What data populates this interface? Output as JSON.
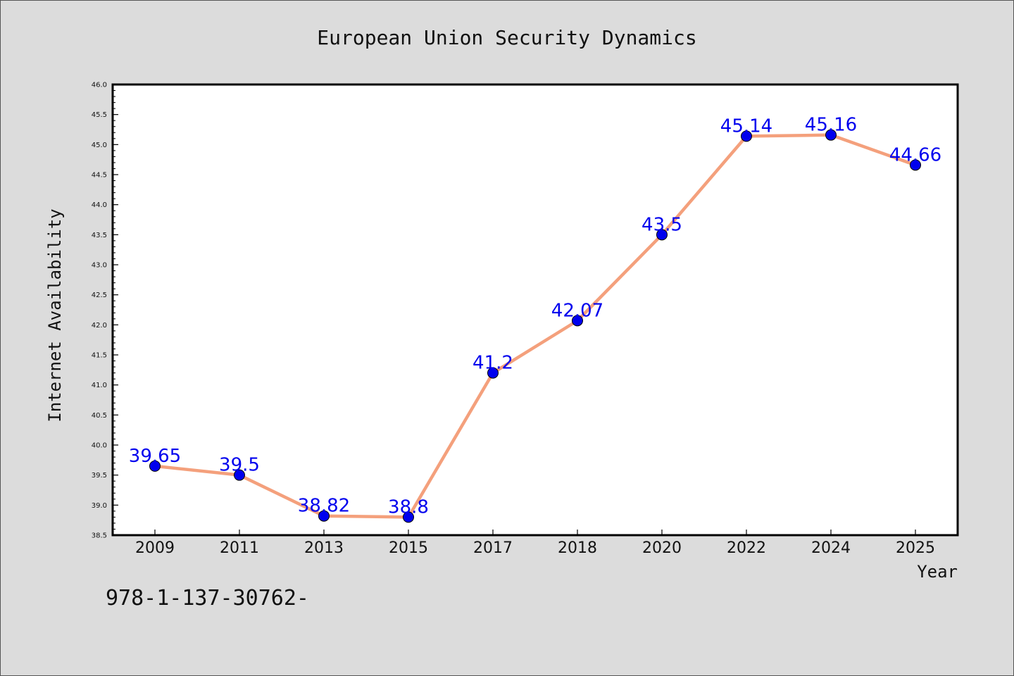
{
  "chart_data": {
    "type": "line",
    "title": "European Union Security Dynamics",
    "xlabel": "Year",
    "ylabel": "Internet Availability",
    "categories": [
      "2009",
      "2011",
      "2013",
      "2015",
      "2017",
      "2018",
      "2020",
      "2022",
      "2024",
      "2025"
    ],
    "series": [
      {
        "values": [
          39.65,
          39.5,
          38.82,
          38.8,
          41.2,
          42.07,
          43.5,
          45.14,
          45.16,
          44.66
        ],
        "labels": [
          "39.65",
          "39.5",
          "38.82",
          "38.8",
          "41.2",
          "42.07",
          "43.5",
          "45.14",
          "45.16",
          "44.66"
        ]
      }
    ],
    "ylim": [
      38.5,
      46.0
    ],
    "yticks": [
      "38.5",
      "39.0",
      "39.5",
      "40.0",
      "40.5",
      "41.0",
      "41.5",
      "42.0",
      "42.5",
      "43.0",
      "43.5",
      "44.0",
      "44.5",
      "45.0",
      "45.5",
      "46.0"
    ],
    "grid": false,
    "colors": {
      "line": "#f4a07c",
      "marker": "#0000ee",
      "label": "#0000ee",
      "frame": "#000000",
      "plot_bg": "#ffffff"
    }
  },
  "footer": {
    "code": "978-1-137-30762-"
  }
}
